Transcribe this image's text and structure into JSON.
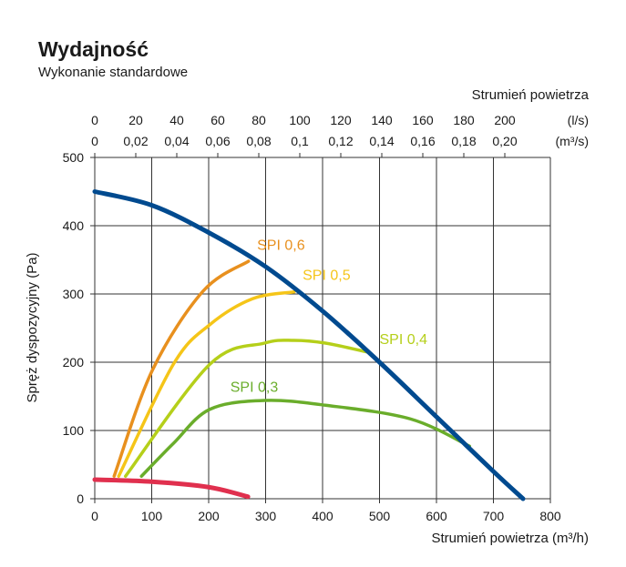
{
  "chart_data": {
    "type": "line",
    "title": "Wydajność",
    "subtitle": "Wykonanie standardowe",
    "xlabel": "Strumień powietrza (m³/h)",
    "ylabel": "Spręż dyspozycyjny (Pa)",
    "xlim": [
      0,
      800
    ],
    "ylim": [
      0,
      500
    ],
    "xticks": [
      "0",
      "100",
      "200",
      "300",
      "400",
      "500",
      "600",
      "700",
      "800"
    ],
    "yticks": [
      "0",
      "100",
      "200",
      "300",
      "400",
      "500"
    ],
    "grid": true,
    "top_axis": {
      "label": "Strumień powietrza",
      "ls_unit": "(l/s)",
      "m3s_unit": "(m³/s)",
      "ls_values": [
        0,
        20,
        40,
        60,
        80,
        100,
        120,
        140,
        160,
        180,
        200
      ],
      "ls_labels": [
        "0",
        "20",
        "40",
        "60",
        "80",
        "100",
        "120",
        "140",
        "160",
        "180",
        "200"
      ],
      "m3s_labels": [
        "0",
        "0,02",
        "0,04",
        "0,06",
        "0,08",
        "0,1",
        "0,12",
        "0,14",
        "0,16",
        "0,18",
        "0,20"
      ]
    },
    "series": [
      {
        "color": "#004a8f",
        "points": [
          [
            0,
            450
          ],
          [
            100,
            430
          ],
          [
            200,
            390
          ],
          [
            300,
            340
          ],
          [
            400,
            275
          ],
          [
            500,
            200
          ],
          [
            600,
            120
          ],
          [
            700,
            40
          ],
          [
            752,
            0
          ]
        ]
      },
      {
        "color": "#e0304e",
        "points": [
          [
            0,
            28
          ],
          [
            100,
            25
          ],
          [
            200,
            17
          ],
          [
            269,
            3
          ]
        ]
      },
      {
        "name": "SPI 0,6",
        "color": "#e8901e",
        "points": [
          [
            34,
            33
          ],
          [
            101,
            188
          ],
          [
            190,
            304
          ],
          [
            270,
            348
          ]
        ]
      },
      {
        "name": "SPI 0,5",
        "color": "#f5c518",
        "points": [
          [
            42,
            33
          ],
          [
            138,
            197
          ],
          [
            202,
            255
          ],
          [
            277,
            293
          ],
          [
            350,
            303
          ]
        ]
      },
      {
        "name": "SPI 0,4",
        "color": "#b5cf1a",
        "points": [
          [
            54,
            33
          ],
          [
            202,
            197
          ],
          [
            298,
            228
          ],
          [
            350,
            232
          ],
          [
            405,
            228
          ],
          [
            478,
            215
          ]
        ]
      },
      {
        "name": "SPI 0,3",
        "color": "#6aad2b",
        "points": [
          [
            82,
            33
          ],
          [
            138,
            81
          ],
          [
            202,
            131
          ],
          [
            298,
            144
          ],
          [
            405,
            137
          ],
          [
            554,
            117
          ],
          [
            658,
            77
          ]
        ]
      }
    ],
    "annotations": [
      {
        "text": "SPI 0,6",
        "x": 285,
        "y": 365,
        "color": "#e8901e"
      },
      {
        "text": "SPI 0,5",
        "x": 365,
        "y": 321,
        "color": "#f5c518"
      },
      {
        "text": "SPI 0,4",
        "x": 500,
        "y": 227,
        "color": "#b5cf1a"
      },
      {
        "text": "SPI 0,3",
        "x": 238,
        "y": 157,
        "color": "#6aad2b"
      }
    ]
  }
}
